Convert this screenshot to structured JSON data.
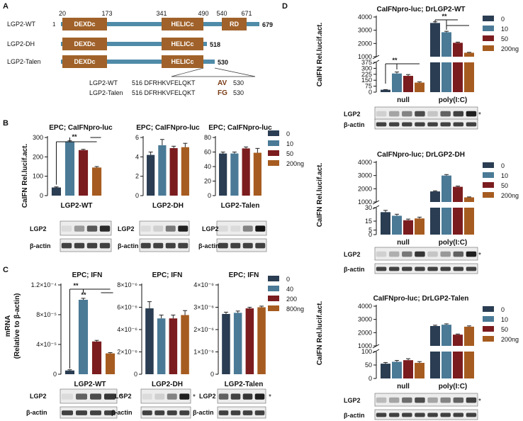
{
  "colors": {
    "s0": "#2a3d52",
    "s1": "#4a7a96",
    "s2": "#7b1c1f",
    "s3": "#a65c20",
    "domain": "#a0622a",
    "line": "#4f8ba8"
  },
  "panel_letters": {
    "A": "A",
    "B": "B",
    "C": "C",
    "D": "D"
  },
  "panelA": {
    "positions": {
      "p20": "20",
      "p173": "173",
      "p341": "341",
      "p490": "490",
      "p540": "540",
      "p671": "671",
      "start": "1"
    },
    "constructs": [
      {
        "name": "LGP2-WT",
        "domains": [
          "DEXDc",
          "HELICc",
          "RD"
        ],
        "end": "679"
      },
      {
        "name": "LGP2-DH",
        "domains": [
          "DEXDc",
          "HELICc"
        ],
        "end": "518"
      },
      {
        "name": "LGP2-Talen",
        "domains": [
          "DEXDc",
          "HELICc"
        ],
        "end": "530"
      }
    ],
    "seq_wt": {
      "label": "LGP2-WT",
      "start": "516",
      "seq": "DFRHKVFELQKT",
      "mut": "AV",
      "end": "530"
    },
    "seq_talen": {
      "label": "LGP2-Talen",
      "start": "516",
      "seq": "DFRHKVFELQKT",
      "mut": "FG",
      "end": "530"
    }
  },
  "panelB": {
    "ylabel": "CaIFN Rel.lucif.act.",
    "legend": [
      "0",
      "10",
      "50",
      "200ng"
    ],
    "sig": "**",
    "blot_labels": {
      "top": "LGP2",
      "bottom": "β-actin"
    }
  },
  "panelC": {
    "ylabel_line1": "mRNA",
    "ylabel_line2": "(Relative to β-actin)",
    "legend": [
      "0",
      "40",
      "200",
      "800ng"
    ],
    "sig": "**",
    "blot_labels": {
      "top": "LGP2",
      "bottom": "β-actin"
    },
    "asterisk": "*"
  },
  "panelD": {
    "ylabel": "CaIFN Rel.lucif.act.",
    "legend": [
      "0",
      "10",
      "50",
      "200ng"
    ],
    "groups": [
      "null",
      "poly(I:C)"
    ],
    "sig": "**",
    "blot_labels": {
      "top": "LGP2",
      "bottom": "β-actin"
    },
    "asterisk": "*"
  },
  "chart_data": [
    {
      "id": "B1",
      "type": "bar",
      "title": "EPC; CaIFNpro-luc",
      "xlabel": "LGP2-WT",
      "ylim": [
        0,
        300
      ],
      "yticks": [
        "0",
        "100",
        "200",
        "300"
      ],
      "values": [
        42,
        280,
        235,
        145
      ],
      "errors": [
        3,
        3,
        4,
        5
      ]
    },
    {
      "id": "B2",
      "type": "bar",
      "title": "EPC; CaIFNpro-luc",
      "xlabel": "LGP2-DH",
      "ylim": [
        0,
        6
      ],
      "yticks": [
        "0",
        "2",
        "4",
        "6"
      ],
      "values": [
        4.2,
        5.2,
        4.9,
        5.0
      ],
      "errors": [
        0.3,
        0.6,
        0.2,
        0.4
      ]
    },
    {
      "id": "B3",
      "type": "bar",
      "title": "EPC; CaIFNpro-luc",
      "xlabel": "LGP2-Talen",
      "ylim": [
        0,
        80
      ],
      "yticks": [
        "0",
        "20",
        "40",
        "60",
        "80"
      ],
      "values": [
        58,
        58,
        65,
        59
      ],
      "errors": [
        2,
        2,
        2,
        6
      ]
    },
    {
      "id": "C1",
      "type": "bar",
      "title": "EPC; IFN",
      "xlabel": "LGP2-WT",
      "ylim": [
        0,
        0.00012
      ],
      "yticks": [
        "0",
        "4×10⁻⁵",
        "8×10⁻⁵",
        "1.2×10⁻⁴"
      ],
      "values": [
        5e-06,
        0.0001,
        4.4e-05,
        2.8e-05
      ],
      "errors": [
        1e-06,
        2e-06,
        1.5e-06,
        1e-06
      ]
    },
    {
      "id": "C2",
      "type": "bar",
      "title": "EPC; IFN",
      "xlabel": "LGP2-DH",
      "ylim": [
        0,
        8e-06
      ],
      "yticks": [
        "0",
        "2×10⁻⁶",
        "4×10⁻⁶",
        "6×10⁻⁶",
        "8×10⁻⁶"
      ],
      "values": [
        5.9e-06,
        5e-06,
        5e-06,
        5.3e-06
      ],
      "errors": [
        6e-07,
        3e-07,
        3e-07,
        4e-07
      ]
    },
    {
      "id": "C3",
      "type": "bar",
      "title": "EPC; IFN",
      "xlabel": "LGP2-Talen",
      "ylim": [
        0,
        4e-06
      ],
      "yticks": [
        "0",
        "1×10⁻⁶",
        "2×10⁻⁶",
        "3×10⁻⁶",
        "4×10⁻⁶"
      ],
      "values": [
        2.7e-06,
        2.75e-06,
        2.95e-06,
        3e-06
      ],
      "errors": [
        8e-08,
        8e-08,
        5e-08,
        5e-08
      ]
    },
    {
      "id": "D1",
      "type": "bar",
      "title": "CaIFNpro-luc; DrLGP2-WT",
      "categories": [
        "null",
        "poly(I:C)"
      ],
      "broken_axis": true,
      "lower_ylim": [
        0,
        375
      ],
      "lower_yticks": [
        "0",
        "75",
        "150",
        "225",
        "300",
        "375"
      ],
      "upper_ylim": [
        1000,
        4000
      ],
      "upper_yticks": [
        "1000",
        "2000",
        "3000",
        "4000"
      ],
      "series": [
        {
          "name": "0",
          "values": [
            30,
            3550
          ]
        },
        {
          "name": "10",
          "values": [
            235,
            2850
          ]
        },
        {
          "name": "50",
          "values": [
            205,
            2050
          ]
        },
        {
          "name": "200ng",
          "values": [
            120,
            1300
          ]
        }
      ]
    },
    {
      "id": "D2",
      "type": "bar",
      "title": "CaIFNpro-luc; DrLGP2-DH",
      "categories": [
        "null",
        "poly(I:C)"
      ],
      "broken_axis": true,
      "lower_ylim": [
        0,
        30
      ],
      "lower_yticks": [
        "0",
        "5",
        "15",
        "30"
      ],
      "upper_ylim": [
        1000,
        4000
      ],
      "upper_yticks": [
        "1000",
        "2000",
        "3000",
        "4000"
      ],
      "series": [
        {
          "name": "0",
          "values": [
            25,
            1800
          ]
        },
        {
          "name": "10",
          "values": [
            21,
            3000
          ]
        },
        {
          "name": "50",
          "values": [
            16,
            2150
          ]
        },
        {
          "name": "200ng",
          "values": [
            18,
            1350
          ]
        }
      ]
    },
    {
      "id": "D3",
      "type": "bar",
      "title": "CaIFNpro-luc; DrLGP2-Talen",
      "categories": [
        "null",
        "poly(I:C)"
      ],
      "broken_axis": true,
      "lower_ylim": [
        0,
        100
      ],
      "lower_yticks": [
        "0",
        "50",
        "100"
      ],
      "upper_ylim": [
        1000,
        4000
      ],
      "upper_yticks": [
        "1000",
        "2000",
        "3000",
        "4000"
      ],
      "series": [
        {
          "name": "0",
          "values": [
            55,
            2500
          ]
        },
        {
          "name": "10",
          "values": [
            62,
            2600
          ]
        },
        {
          "name": "50",
          "values": [
            68,
            1850
          ]
        },
        {
          "name": "200ng",
          "values": [
            58,
            2450
          ]
        }
      ]
    }
  ]
}
